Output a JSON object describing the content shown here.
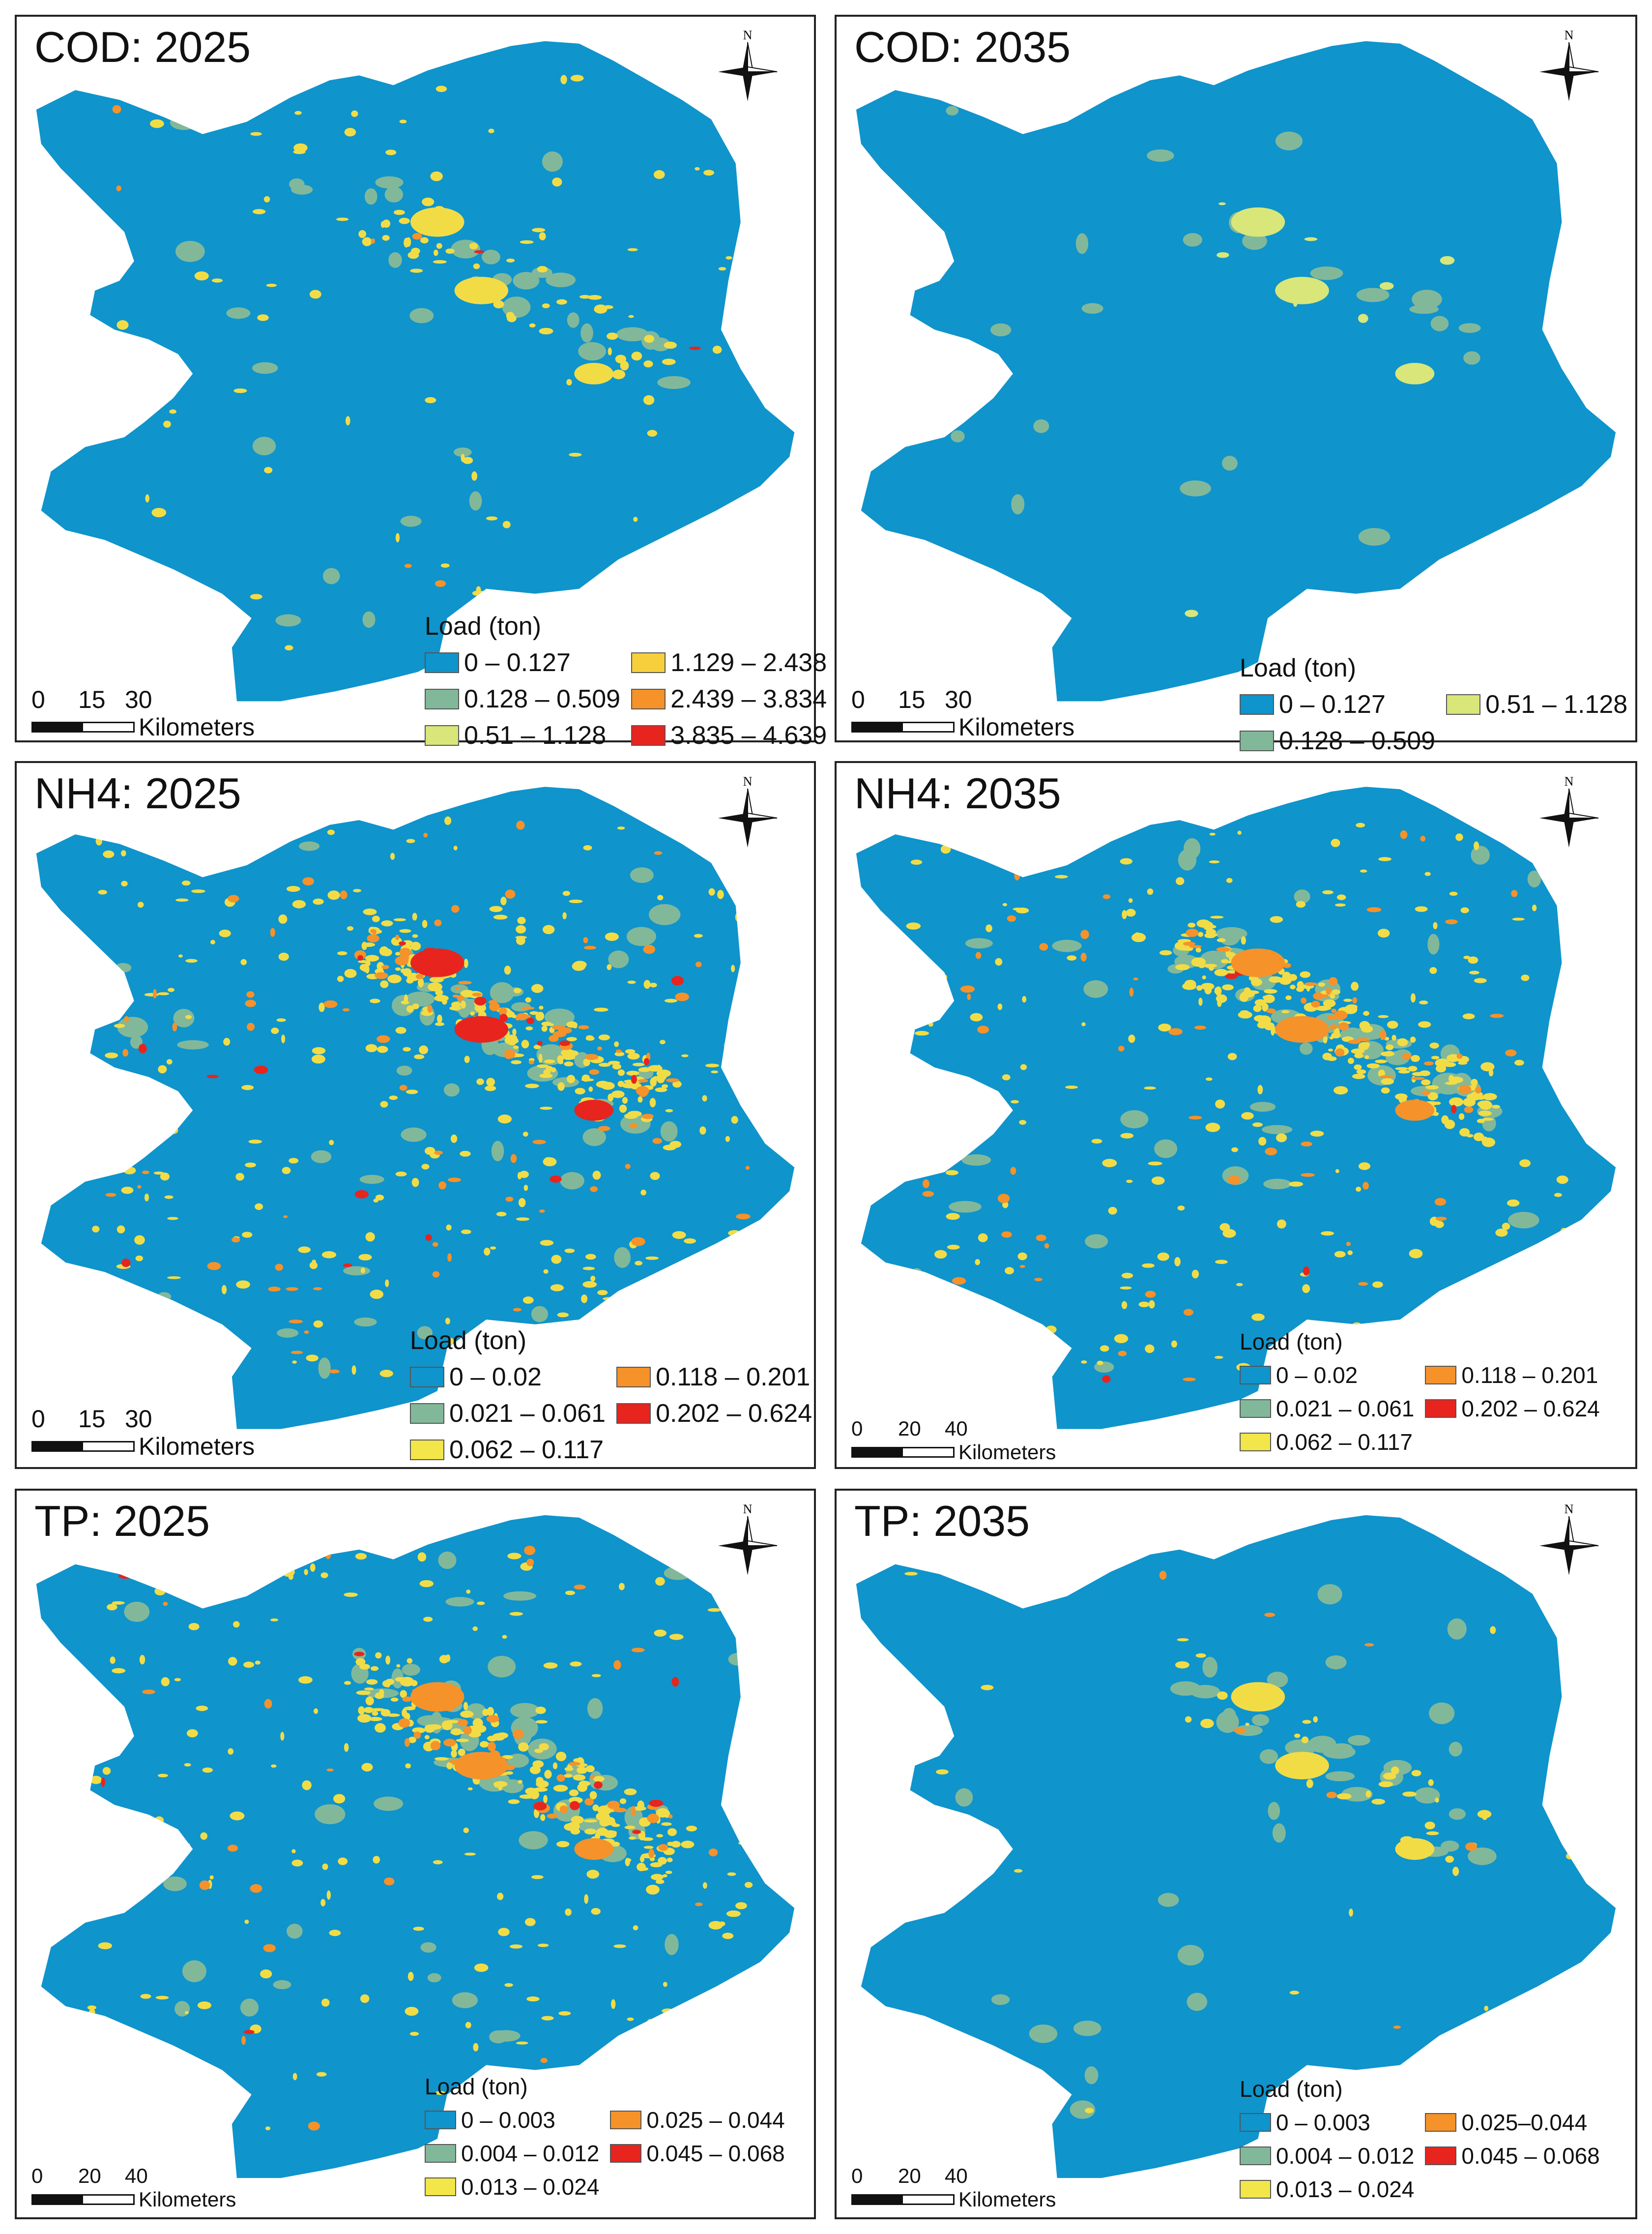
{
  "colors": {
    "background_class": "#0f94cc",
    "green": "#82b89a",
    "pale_yellow": "#d8e67a",
    "yellow": "#f2dc46",
    "orange": "#f5922a",
    "red": "#e8241e"
  },
  "icons": {
    "compass": "north-arrow-icon"
  },
  "panels": [
    {
      "title": "COD: 2025",
      "compass_label": "N",
      "legend": {
        "title": "Load (ton)",
        "items": [
          {
            "label": "0 – 0.127",
            "color": "#0f94cc"
          },
          {
            "label": "1.129 – 2.438",
            "color": "#f7cf3d"
          },
          {
            "label": "0.128 – 0.509",
            "color": "#82b89a"
          },
          {
            "label": "2.439 – 3.834",
            "color": "#f5922a"
          },
          {
            "label": "0.51 – 1.128",
            "color": "#d8e67a"
          },
          {
            "label": "3.835 – 4.639",
            "color": "#e8241e"
          }
        ]
      },
      "scale": {
        "ticks": [
          "0",
          "15",
          "30"
        ],
        "unit": "Kilometers"
      }
    },
    {
      "title": "COD: 2035",
      "compass_label": "N",
      "legend": {
        "title": "Load (ton)",
        "items": [
          {
            "label": "0 – 0.127",
            "color": "#0f94cc"
          },
          {
            "label": "0.51 – 1.128",
            "color": "#d8e67a"
          },
          {
            "label": "0.128 – 0.509",
            "color": "#82b89a"
          }
        ]
      },
      "scale": {
        "ticks": [
          "0",
          "15",
          "30"
        ],
        "unit": "Kilometers"
      }
    },
    {
      "title": "NH4: 2025",
      "compass_label": "N",
      "legend": {
        "title": "Load (ton)",
        "items": [
          {
            "label": "0 – 0.02",
            "color": "#0f94cc"
          },
          {
            "label": "0.118 – 0.201",
            "color": "#f5922a"
          },
          {
            "label": "0.021 – 0.061",
            "color": "#82b89a"
          },
          {
            "label": "0.202 – 0.624",
            "color": "#e8241e"
          },
          {
            "label": "0.062 – 0.117",
            "color": "#f2e64a"
          }
        ]
      },
      "scale": {
        "ticks": [
          "0",
          "15",
          "30"
        ],
        "unit": "Kilometers"
      }
    },
    {
      "title": "NH4: 2035",
      "compass_label": "N",
      "legend": {
        "title": "Load (ton)",
        "items": [
          {
            "label": "0 – 0.02",
            "color": "#0f94cc"
          },
          {
            "label": "0.118 – 0.201",
            "color": "#f5922a"
          },
          {
            "label": "0.021 – 0.061",
            "color": "#82b89a"
          },
          {
            "label": "0.202 – 0.624",
            "color": "#e8241e"
          },
          {
            "label": "0.062 – 0.117",
            "color": "#f2e64a"
          }
        ]
      },
      "scale": {
        "ticks": [
          "0",
          "20",
          "40"
        ],
        "unit": "Kilometers"
      }
    },
    {
      "title": "TP: 2025",
      "compass_label": "N",
      "legend": {
        "title": "Load (ton)",
        "items": [
          {
            "label": "0 – 0.003",
            "color": "#0f94cc"
          },
          {
            "label": "0.025 – 0.044",
            "color": "#f5922a"
          },
          {
            "label": "0.004 – 0.012",
            "color": "#82b89a"
          },
          {
            "label": "0.045 – 0.068",
            "color": "#e8241e"
          },
          {
            "label": "0.013 – 0.024",
            "color": "#f2e64a"
          }
        ]
      },
      "scale": {
        "ticks": [
          "0",
          "20",
          "40"
        ],
        "unit": "Kilometers"
      }
    },
    {
      "title": "TP: 2035",
      "compass_label": "N",
      "legend": {
        "title": "Load (ton)",
        "items": [
          {
            "label": "0 – 0.003",
            "color": "#0f94cc"
          },
          {
            "label": "0.025–0.044",
            "color": "#f5922a"
          },
          {
            "label": "0.004 – 0.012",
            "color": "#82b89a"
          },
          {
            "label": "0.045 – 0.068",
            "color": "#e8241e"
          },
          {
            "label": "0.013 – 0.024",
            "color": "#f2e64a"
          }
        ]
      },
      "scale": {
        "ticks": [
          "0",
          "20",
          "40"
        ],
        "unit": "Kilometers"
      }
    }
  ]
}
